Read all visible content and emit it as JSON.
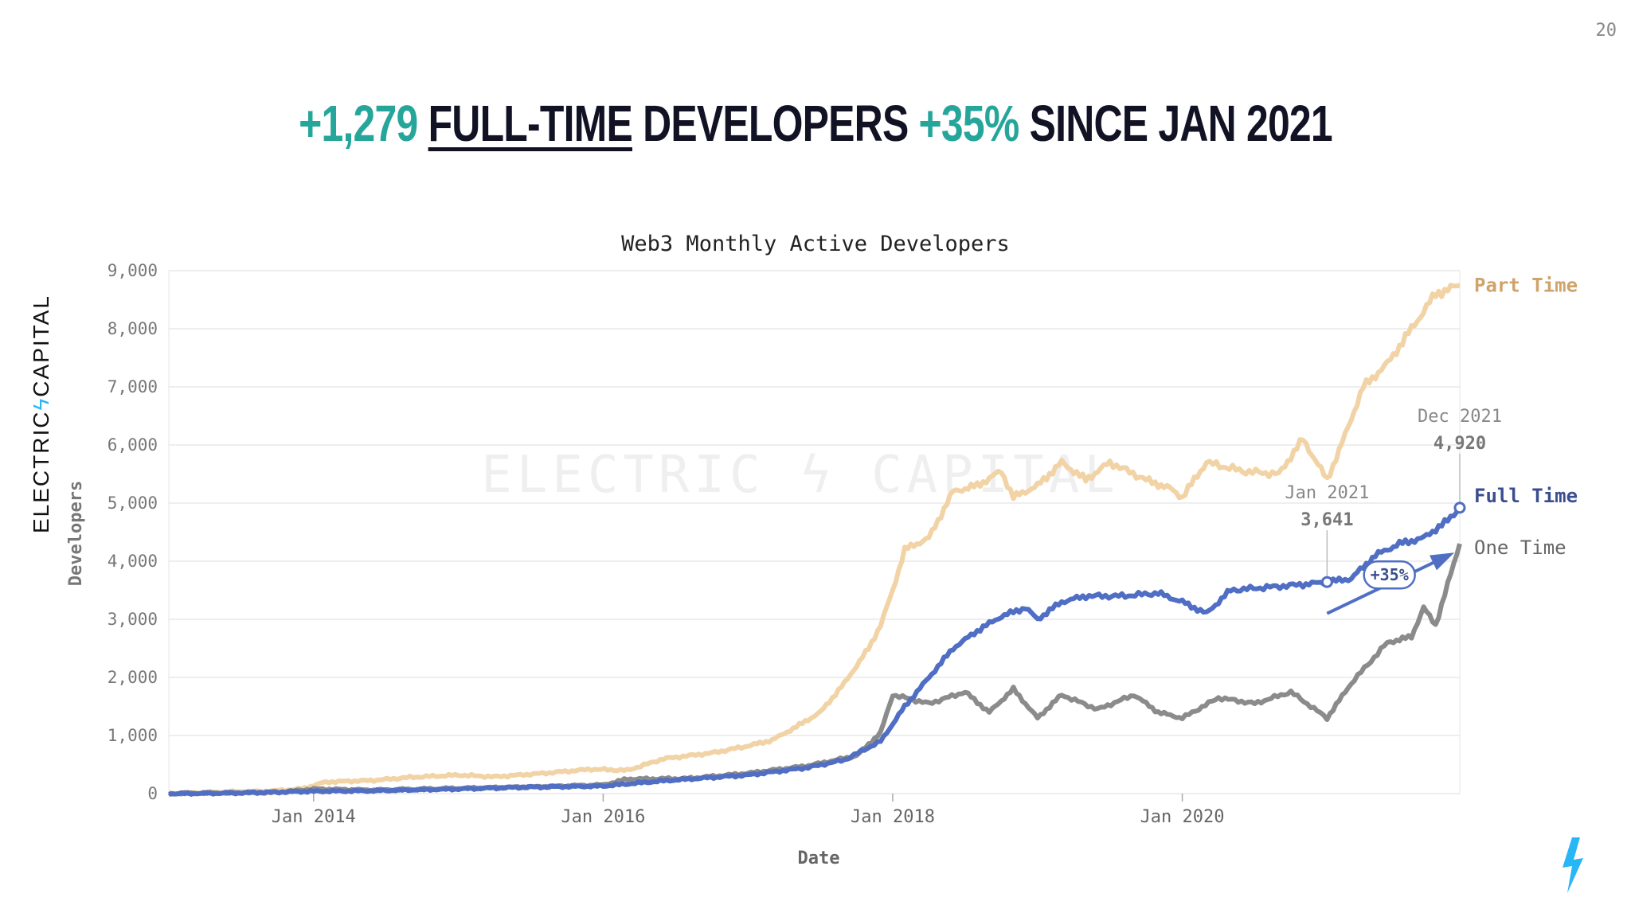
{
  "page": {
    "page_number": "20",
    "headline": {
      "part1": "+1,279",
      "part2": "FULL-TIME",
      "part3": "DEVELOPERS",
      "part4": "+35%",
      "part5": "SINCE JAN 2021"
    },
    "brand": {
      "left": "ELECTRIC",
      "bolt": "ϟ",
      "right": "CAPITAL"
    },
    "watermark": "ELECTRIC ϟ CAPITAL"
  },
  "colors": {
    "part_time": "#f1d3a6",
    "part_time_label": "#cfa36a",
    "full_time": "#4f6ec4",
    "full_time_label": "#3a4e8f",
    "one_time": "#8b8b8b",
    "accent": "#26a69a",
    "bolt": "#29b6f6"
  },
  "chart_data": {
    "type": "line",
    "title": "Web3 Monthly Active Developers",
    "xlabel": "Date",
    "ylabel": "Developers",
    "ylim": [
      0,
      9000
    ],
    "xlim": [
      "2013-01",
      "2021-12"
    ],
    "yticks": [
      "0",
      "1,000",
      "2,000",
      "3,000",
      "4,000",
      "5,000",
      "6,000",
      "7,000",
      "8,000",
      "9,000"
    ],
    "xticks": [
      {
        "date": "2014-01",
        "label": "Jan 2014"
      },
      {
        "date": "2016-01",
        "label": "Jan 2016"
      },
      {
        "date": "2018-01",
        "label": "Jan 2018"
      },
      {
        "date": "2020-01",
        "label": "Jan 2020"
      }
    ],
    "grid": true,
    "legend": "right, next to line ends",
    "series": [
      {
        "name": "Part Time",
        "key": "part_time",
        "points": [
          [
            "2013-01",
            0
          ],
          [
            "2013-06",
            30
          ],
          [
            "2013-09",
            40
          ],
          [
            "2013-12",
            80
          ],
          [
            "2014-02",
            200
          ],
          [
            "2014-06",
            230
          ],
          [
            "2014-09",
            280
          ],
          [
            "2015-01",
            320
          ],
          [
            "2015-04",
            290
          ],
          [
            "2015-08",
            350
          ],
          [
            "2015-12",
            420
          ],
          [
            "2016-03",
            400
          ],
          [
            "2016-06",
            600
          ],
          [
            "2016-10",
            700
          ],
          [
            "2017-01",
            820
          ],
          [
            "2017-03",
            920
          ],
          [
            "2017-05",
            1150
          ],
          [
            "2017-07",
            1400
          ],
          [
            "2017-09",
            1900
          ],
          [
            "2017-11",
            2500
          ],
          [
            "2017-12",
            2900
          ],
          [
            "2018-01",
            3500
          ],
          [
            "2018-02",
            4200
          ],
          [
            "2018-04",
            4400
          ],
          [
            "2018-06",
            5200
          ],
          [
            "2018-08",
            5300
          ],
          [
            "2018-10",
            5550
          ],
          [
            "2018-11",
            5100
          ],
          [
            "2019-01",
            5300
          ],
          [
            "2019-03",
            5700
          ],
          [
            "2019-05",
            5400
          ],
          [
            "2019-07",
            5700
          ],
          [
            "2019-10",
            5400
          ],
          [
            "2019-12",
            5250
          ],
          [
            "2020-01",
            5100
          ],
          [
            "2020-03",
            5700
          ],
          [
            "2020-06",
            5550
          ],
          [
            "2020-09",
            5500
          ],
          [
            "2020-11",
            6100
          ],
          [
            "2021-01",
            5400
          ],
          [
            "2021-02",
            5900
          ],
          [
            "2021-04",
            7000
          ],
          [
            "2021-06",
            7400
          ],
          [
            "2021-08",
            8000
          ],
          [
            "2021-10",
            8600
          ],
          [
            "2021-12",
            8750
          ]
        ]
      },
      {
        "name": "Full Time",
        "key": "full_time",
        "points": [
          [
            "2013-01",
            0
          ],
          [
            "2013-06",
            10
          ],
          [
            "2014-01",
            40
          ],
          [
            "2014-06",
            50
          ],
          [
            "2015-01",
            80
          ],
          [
            "2015-06",
            110
          ],
          [
            "2016-01",
            130
          ],
          [
            "2016-06",
            220
          ],
          [
            "2017-01",
            320
          ],
          [
            "2017-06",
            450
          ],
          [
            "2017-09",
            580
          ],
          [
            "2017-12",
            900
          ],
          [
            "2018-02",
            1500
          ],
          [
            "2018-04",
            2000
          ],
          [
            "2018-06",
            2500
          ],
          [
            "2018-08",
            2800
          ],
          [
            "2018-10",
            3050
          ],
          [
            "2018-12",
            3200
          ],
          [
            "2019-01",
            3000
          ],
          [
            "2019-03",
            3300
          ],
          [
            "2019-05",
            3400
          ],
          [
            "2019-08",
            3400
          ],
          [
            "2019-11",
            3450
          ],
          [
            "2020-01",
            3300
          ],
          [
            "2020-03",
            3100
          ],
          [
            "2020-05",
            3500
          ],
          [
            "2020-08",
            3550
          ],
          [
            "2020-11",
            3600
          ],
          [
            "2021-01",
            3641
          ],
          [
            "2021-03",
            3700
          ],
          [
            "2021-05",
            4100
          ],
          [
            "2021-07",
            4300
          ],
          [
            "2021-09",
            4400
          ],
          [
            "2021-11",
            4700
          ],
          [
            "2021-12",
            4920
          ]
        ]
      },
      {
        "name": "One Time",
        "key": "one_time",
        "points": [
          [
            "2013-01",
            0
          ],
          [
            "2013-10",
            20
          ],
          [
            "2014-01",
            80
          ],
          [
            "2014-06",
            60
          ],
          [
            "2015-01",
            90
          ],
          [
            "2015-08",
            120
          ],
          [
            "2016-01",
            150
          ],
          [
            "2016-03",
            250
          ],
          [
            "2016-08",
            260
          ],
          [
            "2017-01",
            350
          ],
          [
            "2017-06",
            480
          ],
          [
            "2017-10",
            650
          ],
          [
            "2017-12",
            1050
          ],
          [
            "2018-01",
            1700
          ],
          [
            "2018-04",
            1550
          ],
          [
            "2018-07",
            1750
          ],
          [
            "2018-09",
            1400
          ],
          [
            "2018-11",
            1800
          ],
          [
            "2019-01",
            1300
          ],
          [
            "2019-03",
            1700
          ],
          [
            "2019-06",
            1450
          ],
          [
            "2019-09",
            1700
          ],
          [
            "2019-11",
            1400
          ],
          [
            "2020-01",
            1300
          ],
          [
            "2020-04",
            1650
          ],
          [
            "2020-07",
            1550
          ],
          [
            "2020-10",
            1750
          ],
          [
            "2021-01",
            1300
          ],
          [
            "2021-03",
            1900
          ],
          [
            "2021-06",
            2600
          ],
          [
            "2021-08",
            2700
          ],
          [
            "2021-09",
            3200
          ],
          [
            "2021-10",
            2900
          ],
          [
            "2021-12",
            4300
          ]
        ]
      }
    ],
    "annotations": [
      {
        "date": "2021-01",
        "line1": "Jan 2021",
        "line2": "3,641"
      },
      {
        "date": "2021-12",
        "line1": "Dec 2021",
        "line2": "4,920"
      }
    ],
    "growth_badge": "+35%"
  }
}
